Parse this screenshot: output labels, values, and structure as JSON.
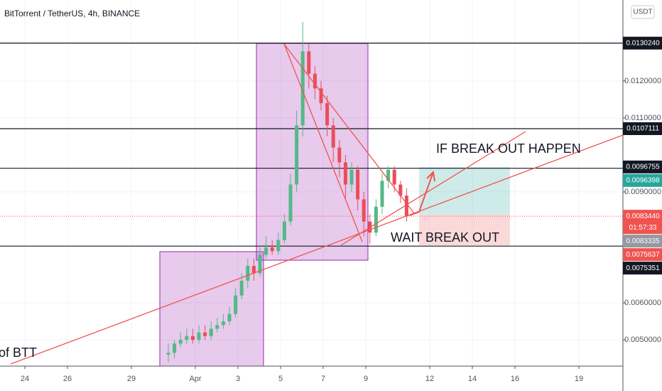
{
  "chart_data": {
    "type": "candlestick",
    "title": "BitTorrent / TetherUS, 4h, BINANCE",
    "currency": "USDT",
    "ylim": [
      0.00429,
      0.01419
    ],
    "yticks": [
      {
        "value": 0.005,
        "label": "0.0050000"
      },
      {
        "value": 0.006,
        "label": "0.0060000"
      },
      {
        "value": 0.009,
        "label": "0.0090000"
      },
      {
        "value": 0.011,
        "label": "0.0110000"
      },
      {
        "value": 0.012,
        "label": "0.0120000"
      }
    ],
    "xticks": [
      {
        "value": 0,
        "label": "24"
      },
      {
        "value": 2,
        "label": "26"
      },
      {
        "value": 5,
        "label": "29"
      },
      {
        "value": 8,
        "label": "Apr"
      },
      {
        "value": 10,
        "label": "3"
      },
      {
        "value": 12,
        "label": "5"
      },
      {
        "value": 14,
        "label": "7"
      },
      {
        "value": 16,
        "label": "9"
      },
      {
        "value": 19,
        "label": "12"
      },
      {
        "value": 21,
        "label": "14"
      },
      {
        "value": 23,
        "label": "16"
      },
      {
        "value": 26,
        "label": "19"
      }
    ],
    "up_color": "#53b987",
    "down_color": "#eb4d5c",
    "candles": {
      "open": [
        0.0046,
        0.00465,
        0.0049,
        0.005,
        0.0051,
        0.005,
        0.0052,
        0.0051,
        0.0053,
        0.0054,
        0.0055,
        0.0057,
        0.0062,
        0.0066,
        0.007,
        0.0068,
        0.0073,
        0.0075,
        0.0074,
        0.0077,
        0.0082,
        0.0092,
        0.0108,
        0.0128,
        0.0122,
        0.0118,
        0.0114,
        0.0108,
        0.0102,
        0.0098,
        0.0092,
        0.0096,
        0.0088,
        0.0082,
        0.0079,
        0.0086,
        0.0093,
        0.0096,
        0.0092,
        0.0089
      ],
      "high": [
        0.0049,
        0.005,
        0.0052,
        0.0053,
        0.0053,
        0.0054,
        0.0054,
        0.0055,
        0.0056,
        0.0057,
        0.0059,
        0.0064,
        0.0068,
        0.0072,
        0.0072,
        0.0075,
        0.0078,
        0.0077,
        0.0079,
        0.0084,
        0.0095,
        0.0112,
        0.0136,
        0.013,
        0.0124,
        0.012,
        0.0116,
        0.011,
        0.0104,
        0.01,
        0.0098,
        0.0097,
        0.009,
        0.0084,
        0.0088,
        0.0095,
        0.0097,
        0.0097,
        0.0093,
        0.0091
      ],
      "low": [
        0.0044,
        0.0045,
        0.0048,
        0.0049,
        0.0049,
        0.0049,
        0.005,
        0.005,
        0.0052,
        0.0053,
        0.0054,
        0.0056,
        0.0061,
        0.0064,
        0.0066,
        0.0067,
        0.0072,
        0.0073,
        0.0073,
        0.0076,
        0.0081,
        0.009,
        0.0105,
        0.0118,
        0.0115,
        0.0112,
        0.0105,
        0.0098,
        0.0094,
        0.0088,
        0.009,
        0.0085,
        0.0078,
        0.0076,
        0.0078,
        0.0084,
        0.0091,
        0.009,
        0.0087,
        0.0082
      ],
      "close": [
        0.00465,
        0.0049,
        0.005,
        0.0051,
        0.005,
        0.0052,
        0.0051,
        0.0053,
        0.0054,
        0.0055,
        0.0057,
        0.0062,
        0.0066,
        0.007,
        0.0068,
        0.0073,
        0.0075,
        0.0074,
        0.0077,
        0.0082,
        0.0092,
        0.0108,
        0.0128,
        0.0122,
        0.0118,
        0.0114,
        0.0108,
        0.0102,
        0.0098,
        0.0092,
        0.0096,
        0.0088,
        0.0082,
        0.0079,
        0.0086,
        0.0093,
        0.0096,
        0.0092,
        0.0089,
        0.00834
      ]
    },
    "levels": [
      0.013024,
      0.0107111,
      0.0096398,
      0.0075351
    ],
    "current_price": 0.008344,
    "price_labels": [
      {
        "value": 0.013024,
        "label": "0.0130240",
        "color": "#131722"
      },
      {
        "value": 0.0107111,
        "label": "0.0107111",
        "color": "#131722"
      },
      {
        "value": 0.0096755,
        "label": "0.0096755",
        "color": "#131722"
      },
      {
        "value": 0.0096398,
        "label": "0.0096398",
        "color": "#26a69a"
      },
      {
        "value": 0.008344,
        "label": "0.0083440",
        "color": "#ef5350",
        "countdown": "01:57:33"
      },
      {
        "value": 0.0083335,
        "label": "0.0083335",
        "color": "#9598a1"
      },
      {
        "value": 0.0075637,
        "label": "0.0075637",
        "color": "#ef5350"
      },
      {
        "value": 0.0075351,
        "label": "0.0075351",
        "color": "#131722"
      }
    ],
    "annotations": [
      "IF BREAK OUT HAPPEN",
      "WAIT BREAK OUT",
      "of BTT"
    ]
  }
}
